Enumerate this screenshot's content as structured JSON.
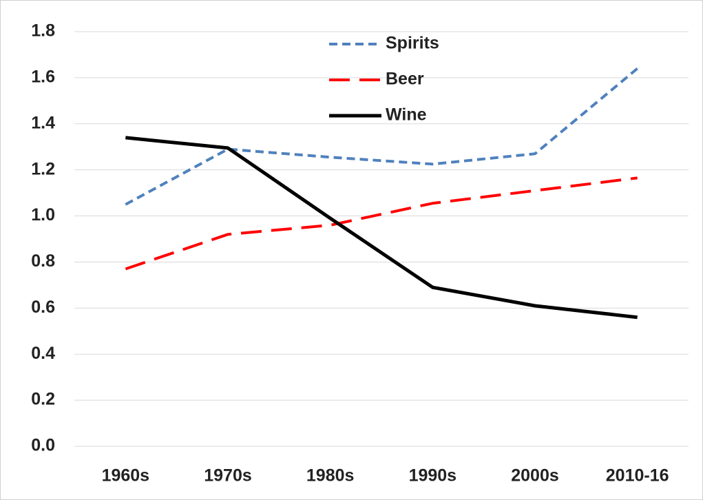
{
  "chart_data": {
    "type": "line",
    "categories": [
      "1960s",
      "1970s",
      "1980s",
      "1990s",
      "2000s",
      "2010-16"
    ],
    "series": [
      {
        "name": "Spirits",
        "color": "#4f81bd",
        "linestyle": "dotted",
        "values": [
          1.05,
          1.29,
          1.255,
          1.225,
          1.27,
          1.64
        ]
      },
      {
        "name": "Beer",
        "color": "#ff0000",
        "linestyle": "dashed",
        "values": [
          0.77,
          0.92,
          0.96,
          1.055,
          1.11,
          1.165
        ]
      },
      {
        "name": "Wine",
        "color": "#000000",
        "linestyle": "solid",
        "values": [
          1.34,
          1.295,
          0.99,
          0.69,
          0.61,
          0.56
        ]
      }
    ],
    "ylim": [
      0,
      1.8
    ],
    "yticks": [
      {
        "value": 0,
        "label": "0.0"
      },
      0.2,
      0.4,
      0.6,
      0.8,
      {
        "value": 1,
        "label": "1.0"
      },
      1.2,
      1.4,
      1.6,
      1.8
    ],
    "grid": true,
    "legend": "top"
  }
}
